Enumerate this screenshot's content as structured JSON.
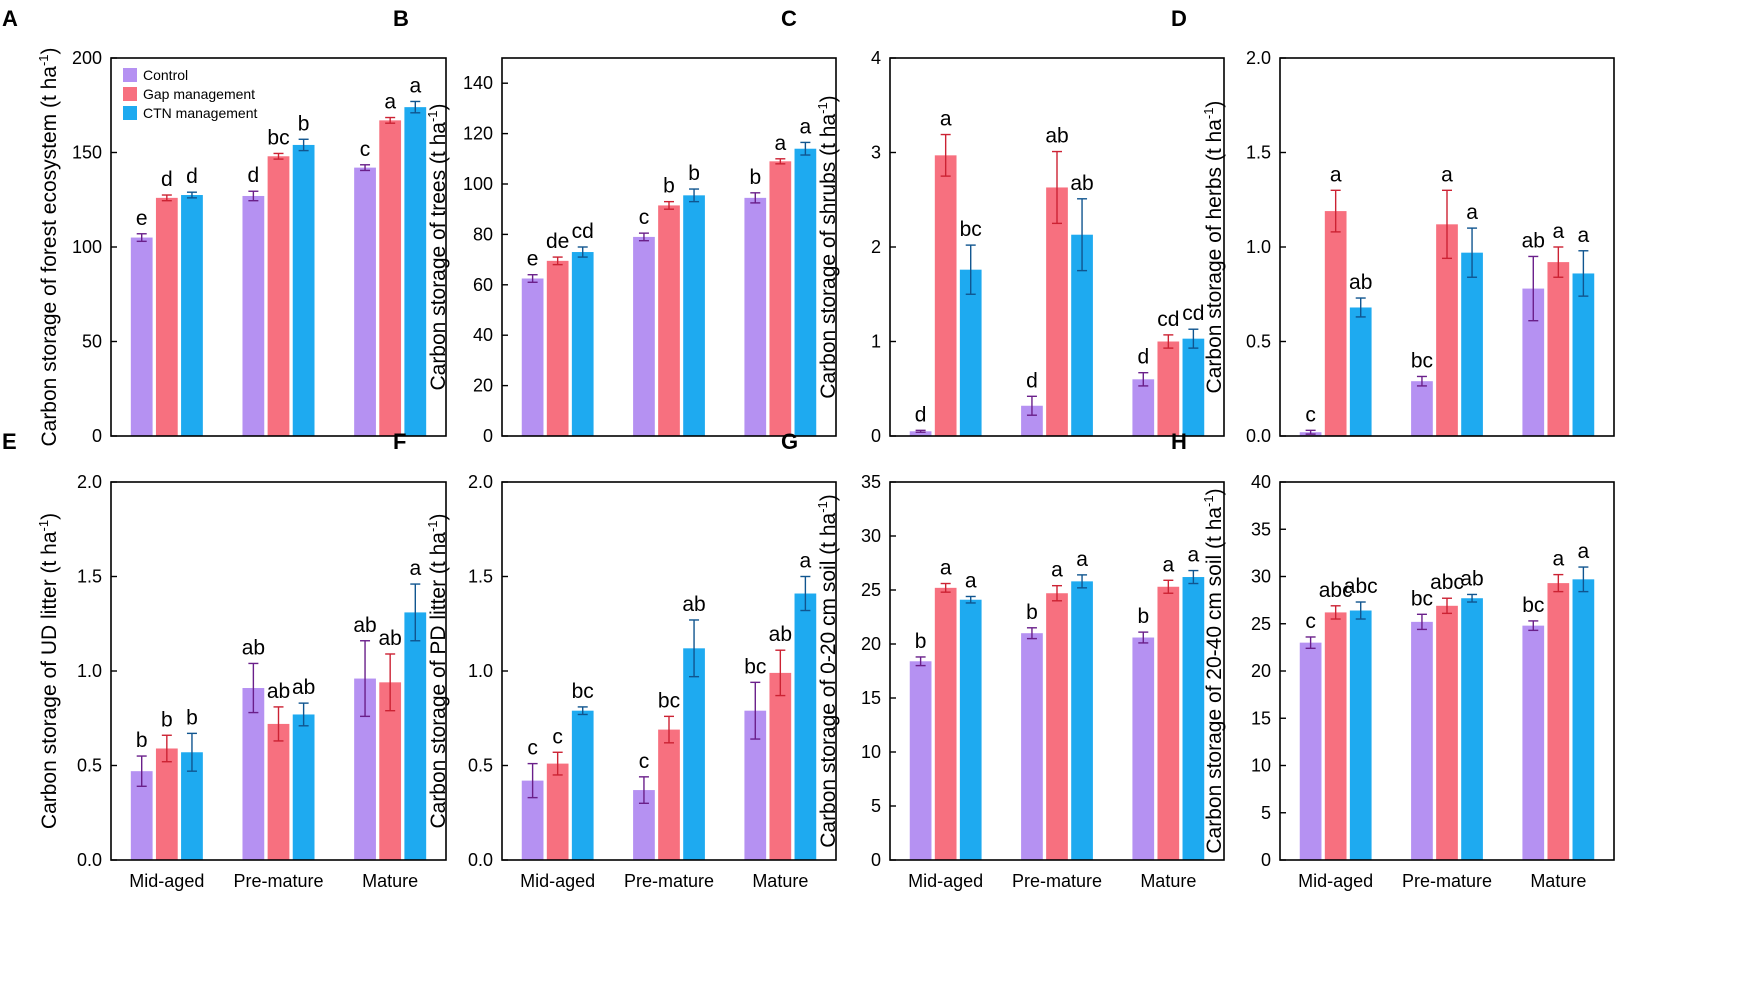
{
  "chart_data": [
    {
      "type": "bar",
      "panel": "A",
      "ylabel": "Carbon storage of forest ecosystem (t ha-1)",
      "ylabel_prefix": "Carbon storage of forest ecosystem (t ha",
      "ylim": [
        0,
        200
      ],
      "yticks": [
        0,
        50,
        100,
        150,
        200
      ],
      "categories": [
        "Mid-aged",
        "Pre-mature",
        "Mature"
      ],
      "show_xticks": false,
      "legend": "top-left",
      "series": [
        {
          "name": "Control",
          "values": [
            105,
            127,
            142
          ],
          "errors": [
            2,
            2.5,
            1.5
          ],
          "labels": [
            "e",
            "d",
            "c"
          ]
        },
        {
          "name": "Gap management",
          "values": [
            126,
            148,
            167
          ],
          "errors": [
            1.5,
            1.5,
            1.5
          ],
          "labels": [
            "d",
            "bc",
            "a"
          ]
        },
        {
          "name": "CTN management",
          "values": [
            127.5,
            154,
            174
          ],
          "errors": [
            1.5,
            3,
            3
          ],
          "labels": [
            "d",
            "b",
            "a"
          ]
        }
      ]
    },
    {
      "type": "bar",
      "panel": "B",
      "ylabel": "Carbon storage of trees (t ha-1)",
      "ylabel_prefix": "Carbon storage of trees (t ha",
      "ylim": [
        0,
        150
      ],
      "yticks": [
        0,
        20,
        40,
        60,
        80,
        100,
        120,
        140
      ],
      "categories": [
        "Mid-aged",
        "Pre-mature",
        "Mature"
      ],
      "show_xticks": false,
      "series": [
        {
          "name": "Control",
          "values": [
            62.5,
            79,
            94.5
          ],
          "errors": [
            1.5,
            1.5,
            2
          ],
          "labels": [
            "e",
            "c",
            "b"
          ]
        },
        {
          "name": "Gap management",
          "values": [
            69.5,
            91.5,
            109
          ],
          "errors": [
            1.5,
            1.5,
            1
          ],
          "labels": [
            "de",
            "b",
            "a"
          ]
        },
        {
          "name": "CTN management",
          "values": [
            73,
            95.5,
            114
          ],
          "errors": [
            2,
            2.5,
            2.5
          ],
          "labels": [
            "cd",
            "b",
            "a"
          ]
        }
      ]
    },
    {
      "type": "bar",
      "panel": "C",
      "ylabel": "Carbon storage of shrubs (t ha-1)",
      "ylabel_prefix": "Carbon storage of shrubs (t ha",
      "ylim": [
        0,
        4
      ],
      "yticks": [
        0,
        1,
        2,
        3,
        4
      ],
      "categories": [
        "Mid-aged",
        "Pre-mature",
        "Mature"
      ],
      "show_xticks": false,
      "series": [
        {
          "name": "Control",
          "values": [
            0.05,
            0.32,
            0.6
          ],
          "errors": [
            0.01,
            0.1,
            0.07
          ],
          "labels": [
            "d",
            "d",
            "d"
          ]
        },
        {
          "name": "Gap management",
          "values": [
            2.97,
            2.63,
            1.0
          ],
          "errors": [
            0.22,
            0.38,
            0.07
          ],
          "labels": [
            "a",
            "ab",
            "cd"
          ]
        },
        {
          "name": "CTN management",
          "values": [
            1.76,
            2.13,
            1.03
          ],
          "errors": [
            0.26,
            0.38,
            0.1
          ],
          "labels": [
            "bc",
            "ab",
            "cd"
          ]
        }
      ]
    },
    {
      "type": "bar",
      "panel": "D",
      "ylabel": "Carbon storage of herbs (t ha-1)",
      "ylabel_prefix": "Carbon storage of herbs (t ha",
      "ylim": [
        0,
        2.0
      ],
      "yticks": [
        "0.0",
        "0.5",
        "1.0",
        "1.5",
        "2.0"
      ],
      "categories": [
        "Mid-aged",
        "Pre-mature",
        "Mature"
      ],
      "show_xticks": false,
      "series": [
        {
          "name": "Control",
          "values": [
            0.02,
            0.29,
            0.78
          ],
          "errors": [
            0.01,
            0.025,
            0.17
          ],
          "labels": [
            "c",
            "bc",
            "ab"
          ]
        },
        {
          "name": "Gap management",
          "values": [
            1.19,
            1.12,
            0.92
          ],
          "errors": [
            0.11,
            0.18,
            0.08
          ],
          "labels": [
            "a",
            "a",
            "a"
          ]
        },
        {
          "name": "CTN management",
          "values": [
            0.68,
            0.97,
            0.86
          ],
          "errors": [
            0.05,
            0.13,
            0.12
          ],
          "labels": [
            "ab",
            "a",
            "a"
          ]
        }
      ]
    },
    {
      "type": "bar",
      "panel": "E",
      "ylabel": "Carbon storage of UD litter (t ha-1)",
      "ylabel_prefix": "Carbon storage of UD litter (t ha",
      "ylim": [
        0,
        2.0
      ],
      "yticks": [
        "0.0",
        "0.5",
        "1.0",
        "1.5",
        "2.0"
      ],
      "categories": [
        "Mid-aged",
        "Pre-mature",
        "Mature"
      ],
      "show_xticks": true,
      "series": [
        {
          "name": "Control",
          "values": [
            0.47,
            0.91,
            0.96
          ],
          "errors": [
            0.08,
            0.13,
            0.2
          ],
          "labels": [
            "b",
            "ab",
            "ab"
          ]
        },
        {
          "name": "Gap management",
          "values": [
            0.59,
            0.72,
            0.94
          ],
          "errors": [
            0.07,
            0.09,
            0.15
          ],
          "labels": [
            "b",
            "ab",
            "ab"
          ]
        },
        {
          "name": "CTN management",
          "values": [
            0.57,
            0.77,
            1.31
          ],
          "errors": [
            0.1,
            0.06,
            0.15
          ],
          "labels": [
            "b",
            "ab",
            "a"
          ]
        }
      ]
    },
    {
      "type": "bar",
      "panel": "F",
      "ylabel": "Carbon storage of PD litter (t ha-1)",
      "ylabel_prefix": "Carbon storage of PD litter (t ha",
      "ylim": [
        0,
        2.0
      ],
      "yticks": [
        "0.0",
        "0.5",
        "1.0",
        "1.5",
        "2.0"
      ],
      "categories": [
        "Mid-aged",
        "Pre-mature",
        "Mature"
      ],
      "show_xticks": true,
      "series": [
        {
          "name": "Control",
          "values": [
            0.42,
            0.37,
            0.79
          ],
          "errors": [
            0.09,
            0.07,
            0.15
          ],
          "labels": [
            "c",
            "c",
            "bc"
          ]
        },
        {
          "name": "Gap management",
          "values": [
            0.51,
            0.69,
            0.99
          ],
          "errors": [
            0.06,
            0.07,
            0.12
          ],
          "labels": [
            "c",
            "bc",
            "ab"
          ]
        },
        {
          "name": "CTN management",
          "values": [
            0.79,
            1.12,
            1.41
          ],
          "errors": [
            0.02,
            0.15,
            0.09
          ],
          "labels": [
            "bc",
            "ab",
            "a"
          ]
        }
      ]
    },
    {
      "type": "bar",
      "panel": "G",
      "ylabel": "Carbon storage of 0-20 cm soil (t ha-1)",
      "ylabel_prefix": "Carbon storage of 0-20 cm soil (t ha",
      "ylim": [
        0,
        35
      ],
      "yticks": [
        0,
        5,
        10,
        15,
        20,
        25,
        30,
        35
      ],
      "categories": [
        "Mid-aged",
        "Pre-mature",
        "Mature"
      ],
      "show_xticks": true,
      "series": [
        {
          "name": "Control",
          "values": [
            18.4,
            21.0,
            20.6
          ],
          "errors": [
            0.4,
            0.5,
            0.5
          ],
          "labels": [
            "b",
            "b",
            "b"
          ]
        },
        {
          "name": "Gap management",
          "values": [
            25.2,
            24.7,
            25.3
          ],
          "errors": [
            0.4,
            0.7,
            0.6
          ],
          "labels": [
            "a",
            "a",
            "a"
          ]
        },
        {
          "name": "CTN management",
          "values": [
            24.1,
            25.8,
            26.2
          ],
          "errors": [
            0.3,
            0.6,
            0.6
          ],
          "labels": [
            "a",
            "a",
            "a"
          ]
        }
      ]
    },
    {
      "type": "bar",
      "panel": "H",
      "ylabel": "Carbon storage of 20-40 cm soil (t ha-1)",
      "ylabel_prefix": "Carbon storage of 20-40 cm soil (t ha",
      "ylim": [
        0,
        40
      ],
      "yticks": [
        0,
        5,
        10,
        15,
        20,
        25,
        30,
        35,
        40
      ],
      "categories": [
        "Mid-aged",
        "Pre-mature",
        "Mature"
      ],
      "show_xticks": true,
      "series": [
        {
          "name": "Control",
          "values": [
            23.0,
            25.2,
            24.8
          ],
          "errors": [
            0.6,
            0.8,
            0.5
          ],
          "labels": [
            "c",
            "bc",
            "bc"
          ]
        },
        {
          "name": "Gap management",
          "values": [
            26.2,
            26.9,
            29.3
          ],
          "errors": [
            0.7,
            0.8,
            0.9
          ],
          "labels": [
            "abc",
            "abc",
            "a"
          ]
        },
        {
          "name": "CTN management",
          "values": [
            26.4,
            27.7,
            29.7
          ],
          "errors": [
            0.9,
            0.4,
            1.3
          ],
          "labels": [
            "abc",
            "ab",
            "a"
          ]
        }
      ]
    }
  ],
  "legend": {
    "items": [
      "Control",
      "Gap management",
      "CTN management"
    ]
  },
  "ylabel_unit_exponent": "-1",
  "ylabel_suffix": ")",
  "colors": {
    "Control": "#b591f2",
    "Gap management": "#f7707f",
    "CTN management": "#1eaaf0",
    "Control_err": "#6a1f8a",
    "Gap management_err": "#cc2233",
    "CTN management_err": "#10558f"
  }
}
